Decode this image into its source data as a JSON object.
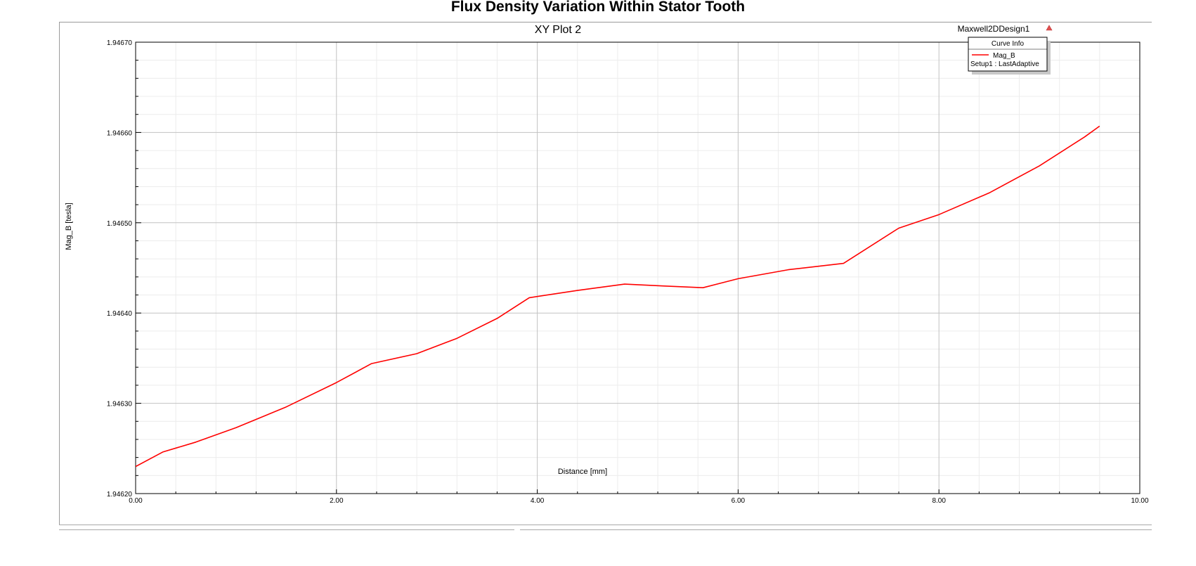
{
  "page": {
    "title": "Flux Density Variation Within Stator Tooth"
  },
  "plot": {
    "name": "XY Plot 2",
    "design": "Maxwell2DDesign1"
  },
  "legend": {
    "header": "Curve Info",
    "entry_name": "Mag_B",
    "entry_source": "Setup1 : LastAdaptive"
  },
  "chart_data": {
    "type": "line",
    "title": "XY Plot 2",
    "xlabel": "Distance [mm]",
    "ylabel": "Mag_B [tesla]",
    "xlim": [
      0,
      10
    ],
    "ylim": [
      1.9462,
      1.9467
    ],
    "x_ticks": [
      "0.00",
      "2.00",
      "4.00",
      "6.00",
      "8.00",
      "10.00"
    ],
    "y_ticks": [
      "1.94620",
      "1.94630",
      "1.94640",
      "1.94650",
      "1.94660",
      "1.94670"
    ],
    "grid": true,
    "legend_position": "top-right",
    "series": [
      {
        "name": "Mag_B",
        "color": "#ff0000",
        "x": [
          0.0,
          0.27,
          0.6,
          1.0,
          1.5,
          2.0,
          2.35,
          2.8,
          3.2,
          3.6,
          3.92,
          4.4,
          4.87,
          5.25,
          5.65,
          6.0,
          6.5,
          7.05,
          7.6,
          8.0,
          8.5,
          9.0,
          9.45,
          9.6
        ],
        "y": [
          1.94623,
          1.946246,
          1.946257,
          1.946273,
          1.946296,
          1.946323,
          1.946344,
          1.946355,
          1.946372,
          1.946394,
          1.946417,
          1.946425,
          1.946432,
          1.94643,
          1.946428,
          1.946438,
          1.946448,
          1.946455,
          1.946494,
          1.946509,
          1.946533,
          1.946563,
          1.946595,
          1.946607
        ]
      }
    ]
  }
}
